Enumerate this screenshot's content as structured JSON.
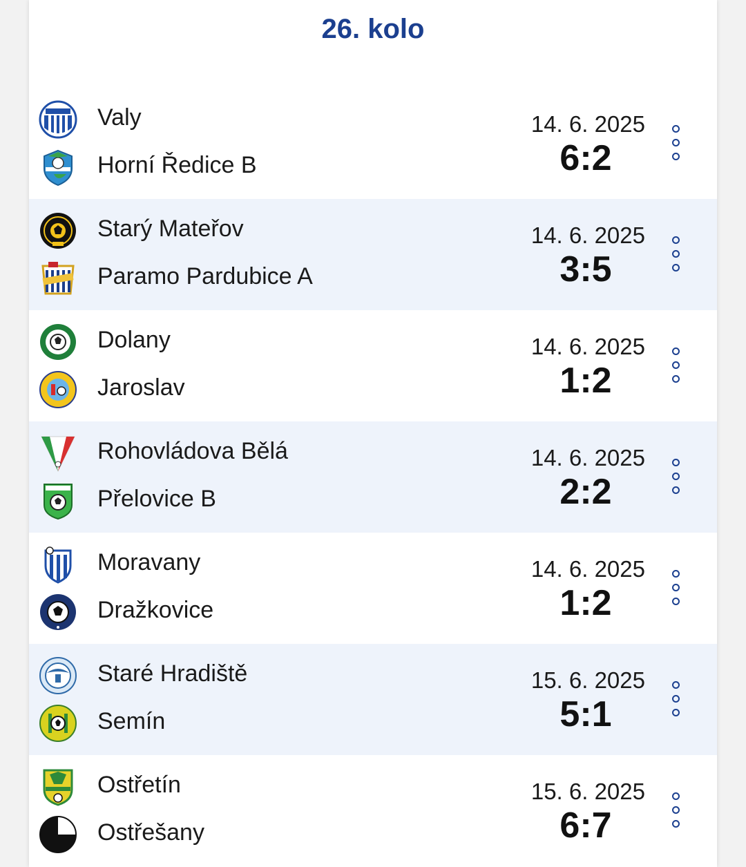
{
  "round": {
    "title": "26. kolo"
  },
  "colors": {
    "accent": "#1b3f8f",
    "alt_row": "#eef3fb"
  },
  "matches": [
    {
      "home": {
        "name": "Valy",
        "logo": "tj-valy-crest"
      },
      "away": {
        "name": "Horní Ředice B",
        "logo": "horni-redice-crest"
      },
      "date": "14. 6. 2025",
      "score": "6:2",
      "menu_icon": "more-vertical-icon"
    },
    {
      "home": {
        "name": "Starý Mateřov",
        "logo": "stary-materov-crest"
      },
      "away": {
        "name": "Paramo Pardubice A",
        "logo": "paramo-crest"
      },
      "date": "14. 6. 2025",
      "score": "3:5",
      "menu_icon": "more-vertical-icon"
    },
    {
      "home": {
        "name": "Dolany",
        "logo": "sk-dolany-crest"
      },
      "away": {
        "name": "Jaroslav",
        "logo": "tj-jaroslav-crest"
      },
      "date": "14. 6. 2025",
      "score": "1:2",
      "menu_icon": "more-vertical-icon"
    },
    {
      "home": {
        "name": "Rohovládova Bělá",
        "logo": "sokol-rohovladova-bela-crest"
      },
      "away": {
        "name": "Přelovice B",
        "logo": "tj-prelovice-crest"
      },
      "date": "14. 6. 2025",
      "score": "2:2",
      "menu_icon": "more-vertical-icon"
    },
    {
      "home": {
        "name": "Moravany",
        "logo": "moravany-crest"
      },
      "away": {
        "name": "Dražkovice",
        "logo": "sk-drazkovice-crest"
      },
      "date": "14. 6. 2025",
      "score": "1:2",
      "menu_icon": "more-vertical-icon"
    },
    {
      "home": {
        "name": "Staré Hradiště",
        "logo": "stare-hradiste-crest"
      },
      "away": {
        "name": "Semín",
        "logo": "sokol-semin-crest"
      },
      "date": "15. 6. 2025",
      "score": "5:1",
      "menu_icon": "more-vertical-icon"
    },
    {
      "home": {
        "name": "Ostřetín",
        "logo": "sokol-ostretin-crest"
      },
      "away": {
        "name": "Ostřešany",
        "logo": "afk-ostresany-crest"
      },
      "date": "15. 6. 2025",
      "score": "6:7",
      "menu_icon": "more-vertical-icon"
    }
  ]
}
